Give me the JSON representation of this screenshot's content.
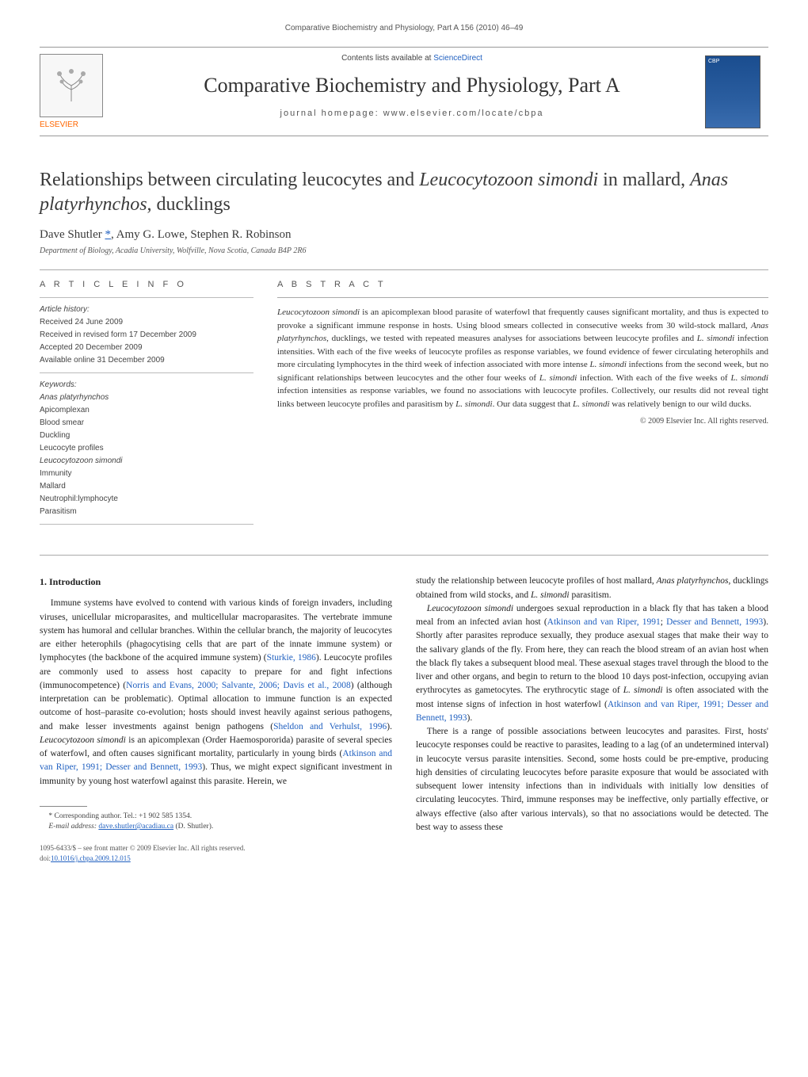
{
  "running_header": "Comparative Biochemistry and Physiology, Part A 156 (2010) 46–49",
  "masthead": {
    "contents_prefix": "Contents lists available at ",
    "contents_link": "ScienceDirect",
    "journal_name": "Comparative Biochemistry and Physiology, Part A",
    "homepage_prefix": "journal homepage: ",
    "homepage_url": "www.elsevier.com/locate/cbpa",
    "publisher": "ELSEVIER",
    "cover_label": "CBP"
  },
  "article": {
    "title_pre": "Relationships between circulating leucocytes and ",
    "title_sp1": "Leucocytozoon simondi",
    "title_mid": " in mallard, ",
    "title_sp2": "Anas platyrhynchos",
    "title_post": ", ducklings",
    "authors": "Dave Shutler ",
    "corr_mark": "*",
    "authors_rest": ", Amy G. Lowe, Stephen R. Robinson",
    "affiliation": "Department of Biology, Acadia University, Wolfville, Nova Scotia, Canada B4P 2R6"
  },
  "info": {
    "heading": "A R T I C L E   I N F O",
    "hist_label": "Article history:",
    "received": "Received 24 June 2009",
    "revised": "Received in revised form 17 December 2009",
    "accepted": "Accepted 20 December 2009",
    "online": "Available online 31 December 2009",
    "kw_label": "Keywords:",
    "kw": [
      "Anas platyrhynchos",
      "Apicomplexan",
      "Blood smear",
      "Duckling",
      "Leucocyte profiles",
      "Leucocytozoon simondi",
      "Immunity",
      "Mallard",
      "Neutrophil:lymphocyte",
      "Parasitism"
    ]
  },
  "abstract": {
    "heading": "A B S T R A C T",
    "text_parts": [
      {
        "t": "Leucocytozoon simondi",
        "i": true
      },
      {
        "t": " is an apicomplexan blood parasite of waterfowl that frequently causes significant mortality, and thus is expected to provoke a significant immune response in hosts. Using blood smears collected in consecutive weeks from 30 wild-stock mallard, "
      },
      {
        "t": "Anas platyrhynchos",
        "i": true
      },
      {
        "t": ", ducklings, we tested with repeated measures analyses for associations between leucocyte profiles and "
      },
      {
        "t": "L. simondi",
        "i": true
      },
      {
        "t": " infection intensities. With each of the five weeks of leucocyte profiles as response variables, we found evidence of fewer circulating heterophils and more circulating lymphocytes in the third week of infection associated with more intense "
      },
      {
        "t": "L. simondi",
        "i": true
      },
      {
        "t": " infections from the second week, but no significant relationships between leucocytes and the other four weeks of "
      },
      {
        "t": "L. simondi",
        "i": true
      },
      {
        "t": " infection. With each of the five weeks of "
      },
      {
        "t": "L. simondi",
        "i": true
      },
      {
        "t": " infection intensities as response variables, we found no associations with leucocyte profiles. Collectively, our results did not reveal tight links between leucocyte profiles and parasitism by "
      },
      {
        "t": "L. simondi",
        "i": true
      },
      {
        "t": ". Our data suggest that "
      },
      {
        "t": "L. simondi",
        "i": true
      },
      {
        "t": " was relatively benign to our wild ducks."
      }
    ],
    "copyright": "© 2009 Elsevier Inc. All rights reserved."
  },
  "body": {
    "section_heading": "1. Introduction",
    "left": [
      {
        "t": "Immune systems have evolved to contend with various kinds of foreign invaders, including viruses, unicellular microparasites, and multicellular macroparasites. The vertebrate immune system has humoral and cellular branches. Within the cellular branch, the majority of leucocytes are either heterophils (phagocytising cells that are part of the innate immune system) or lymphocytes (the backbone of the acquired immune system) ("
      },
      {
        "t": "Sturkie, 1986",
        "r": true
      },
      {
        "t": "). Leucocyte profiles are commonly used to assess host capacity to prepare for and fight infections (immunocompetence) ("
      },
      {
        "t": "Norris and Evans, 2000; Salvante, 2006; Davis et al., 2008",
        "r": true
      },
      {
        "t": ") (although interpretation can be problematic). Optimal allocation to immune function is an expected outcome of host–parasite co-evolution; hosts should invest heavily against serious pathogens, and make lesser investments against benign pathogens ("
      },
      {
        "t": "Sheldon and Verhulst, 1996",
        "r": true
      },
      {
        "t": "). "
      },
      {
        "t": "Leucocytozoon simondi",
        "i": true
      },
      {
        "t": " is an apicomplexan (Order Haemospororida) parasite of several species of waterfowl, and often causes significant mortality, particularly in young birds ("
      },
      {
        "t": "Atkinson and van Riper, 1991; Desser and Bennett, 1993",
        "r": true
      },
      {
        "t": "). Thus, we might expect significant investment in immunity by young host waterfowl against this parasite. Herein, we"
      }
    ],
    "right1": [
      {
        "t": "study the relationship between leucocyte profiles of host mallard, "
      },
      {
        "t": "Anas platyrhynchos",
        "i": true
      },
      {
        "t": ", ducklings obtained from wild stocks, and "
      },
      {
        "t": "L. simondi",
        "i": true
      },
      {
        "t": " parasitism."
      }
    ],
    "right2": [
      {
        "t": "Leucocytozoon simondi",
        "i": true
      },
      {
        "t": " undergoes sexual reproduction in a black fly that has taken a blood meal from an infected avian host ("
      },
      {
        "t": "Atkinson and van Riper, 1991",
        "r": true
      },
      {
        "t": "; "
      },
      {
        "t": "Desser and Bennett, 1993",
        "r": true
      },
      {
        "t": "). Shortly after parasites reproduce sexually, they produce asexual stages that make their way to the salivary glands of the fly. From here, they can reach the blood stream of an avian host when the black fly takes a subsequent blood meal. These asexual stages travel through the blood to the liver and other organs, and begin to return to the blood 10 days post-infection, occupying avian erythrocytes as gametocytes. The erythrocytic stage of "
      },
      {
        "t": "L. simondi",
        "i": true
      },
      {
        "t": " is often associated with the most intense signs of infection in host waterfowl ("
      },
      {
        "t": "Atkinson and van Riper, 1991; Desser and Bennett, 1993",
        "r": true
      },
      {
        "t": ")."
      }
    ],
    "right3": [
      {
        "t": "There is a range of possible associations between leucocytes and parasites. First, hosts' leucocyte responses could be reactive to parasites, leading to a lag (of an undetermined interval) in leucocyte versus parasite intensities. Second, some hosts could be pre-emptive, producing high densities of circulating leucocytes before parasite exposure that would be associated with subsequent lower intensity infections than in individuals with initially low densities of circulating leucocytes. Third, immune responses may be ineffective, only partially effective, or always effective (also after various intervals), so that no associations would be detected. The best way to assess these"
      }
    ]
  },
  "footnote": {
    "corr": "* Corresponding author. Tel.: +1 902 585 1354.",
    "email_label": "E-mail address: ",
    "email": "dave.shutler@acadiau.ca",
    "email_post": " (D. Shutler)."
  },
  "bottom": {
    "issn": "1095-6433/$ – see front matter © 2009 Elsevier Inc. All rights reserved.",
    "doi_label": "doi:",
    "doi": "10.1016/j.cbpa.2009.12.015"
  }
}
